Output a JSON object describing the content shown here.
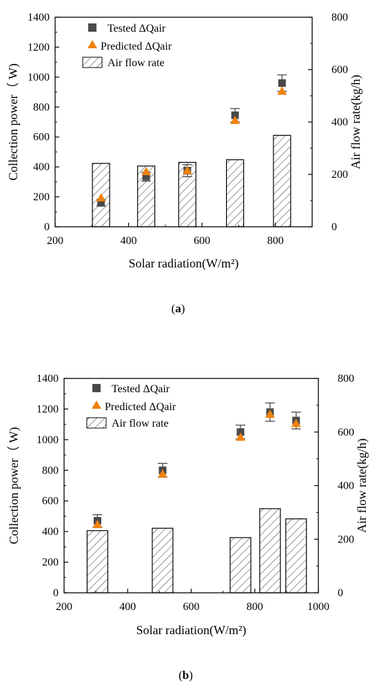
{
  "colors": {
    "tested_marker": "#4a4a4a",
    "predicted_marker": "#f0820f",
    "bar_hatch": "#333333"
  },
  "chart_data": [
    {
      "type": "bar+scatter",
      "panel_label": "a",
      "xlabel": "Solar radiation(W/m²)",
      "ylabel": "Collection power（ W)",
      "y2label": "Air flow rate(kg/h)",
      "xlim": [
        200,
        900
      ],
      "ylim": [
        0,
        1400
      ],
      "y2lim": [
        0,
        800
      ],
      "xticks": [
        200,
        400,
        600,
        800
      ],
      "yticks": [
        0,
        200,
        400,
        600,
        800,
        1000,
        1200,
        1400
      ],
      "y2ticks": [
        0,
        200,
        400,
        600,
        800
      ],
      "legend": [
        "Tested ΔQair",
        "Predicted ΔQair",
        "Air flow rate"
      ],
      "legend_position": "top-left",
      "x": [
        325,
        448,
        560,
        690,
        818
      ],
      "series": [
        {
          "name": "Tested ΔQair",
          "marker": "square",
          "axis": "left",
          "values": [
            160,
            335,
            375,
            745,
            960
          ],
          "error": [
            20,
            30,
            40,
            45,
            55
          ]
        },
        {
          "name": "Predicted ΔQair",
          "marker": "triangle",
          "axis": "left",
          "values": [
            192,
            368,
            375,
            710,
            905
          ]
        },
        {
          "name": "Air flow rate",
          "marker": "bar",
          "axis": "right",
          "values": [
            242,
            232,
            246,
            256,
            349
          ]
        }
      ]
    },
    {
      "type": "bar+scatter",
      "panel_label": "b",
      "xlabel": "Solar radiation(W/m²)",
      "ylabel": "Collection power（ W)",
      "y2label": "Air flow rate(kg/h)",
      "xlim": [
        200,
        1000
      ],
      "ylim": [
        0,
        1400
      ],
      "y2lim": [
        0,
        800
      ],
      "xticks": [
        200,
        400,
        600,
        800,
        1000
      ],
      "yticks": [
        0,
        200,
        400,
        600,
        800,
        1000,
        1200,
        1400
      ],
      "y2ticks": [
        0,
        200,
        400,
        600,
        800
      ],
      "legend": [
        "Tested ΔQair",
        "Predicted ΔQair",
        "Air flow rate"
      ],
      "legend_position": "top-left",
      "x": [
        305,
        510,
        755,
        848,
        930
      ],
      "series": [
        {
          "name": "Tested ΔQair",
          "marker": "square",
          "axis": "left",
          "values": [
            470,
            800,
            1050,
            1180,
            1125
          ],
          "error": [
            40,
            45,
            45,
            60,
            55
          ]
        },
        {
          "name": "Predicted ΔQair",
          "marker": "triangle",
          "axis": "left",
          "values": [
            445,
            775,
            1015,
            1165,
            1105
          ]
        },
        {
          "name": "Air flow rate",
          "marker": "bar",
          "axis": "right",
          "values": [
            232,
            241,
            206,
            314,
            276
          ]
        }
      ]
    }
  ]
}
